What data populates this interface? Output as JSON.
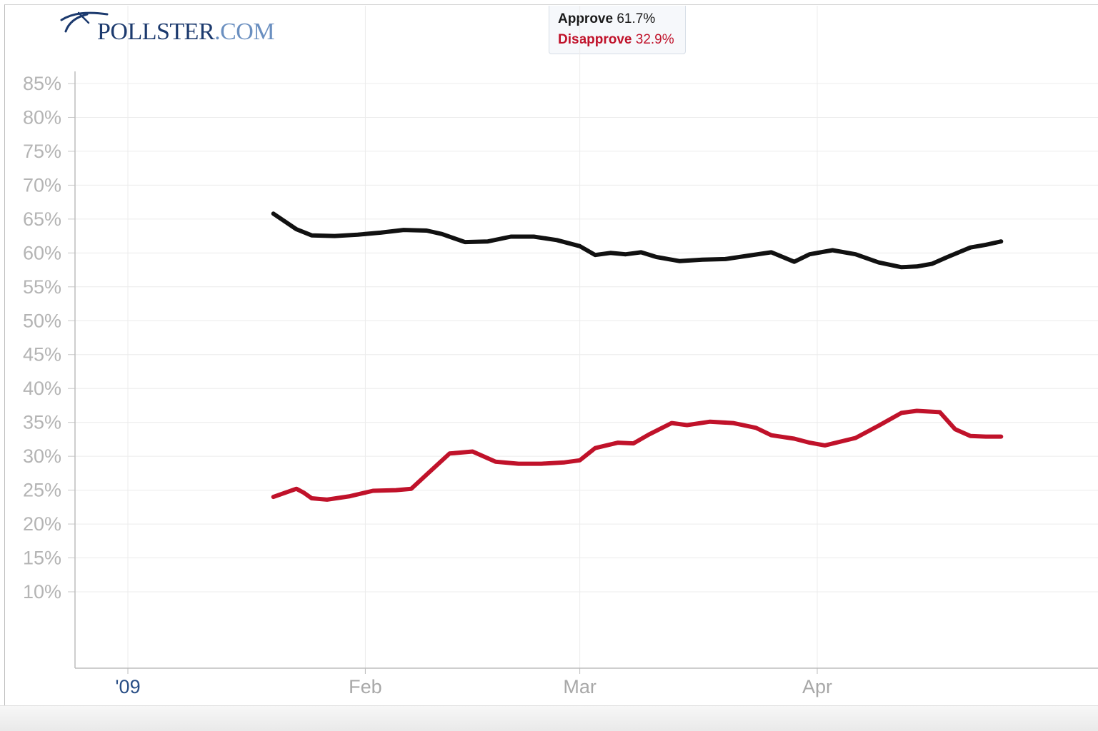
{
  "brand": {
    "name": "POLLSTER",
    "suffix": ".COM",
    "color": "#1c3a6e"
  },
  "tooltip": {
    "approve_label": "Approve",
    "approve_value": "61.7%",
    "disapprove_label": "Disapprove",
    "disapprove_value": "32.9%"
  },
  "chart_data": {
    "type": "line",
    "title": "",
    "xlabel": "",
    "ylabel": "",
    "x_ticks": [
      {
        "label": "'09",
        "date": "2009-01-01"
      },
      {
        "label": "Feb",
        "date": "2009-02-01"
      },
      {
        "label": "Mar",
        "date": "2009-03-01"
      },
      {
        "label": "Apr",
        "date": "2009-04-01"
      }
    ],
    "x_range": [
      "2008-12-25",
      "2009-05-10"
    ],
    "y_ticks": [
      10,
      15,
      20,
      25,
      30,
      35,
      40,
      45,
      50,
      55,
      60,
      65,
      70,
      75,
      80,
      85
    ],
    "y_tick_suffix": "%",
    "ylim": [
      0,
      87
    ],
    "grid": true,
    "series": [
      {
        "name": "Approve",
        "color": "#111111",
        "points": [
          [
            "2009-01-20",
            65.8
          ],
          [
            "2009-01-23",
            63.5
          ],
          [
            "2009-01-25",
            62.6
          ],
          [
            "2009-01-28",
            62.5
          ],
          [
            "2009-01-31",
            62.7
          ],
          [
            "2009-02-03",
            63.0
          ],
          [
            "2009-02-06",
            63.4
          ],
          [
            "2009-02-09",
            63.3
          ],
          [
            "2009-02-11",
            62.8
          ],
          [
            "2009-02-14",
            61.6
          ],
          [
            "2009-02-17",
            61.7
          ],
          [
            "2009-02-20",
            62.4
          ],
          [
            "2009-02-23",
            62.4
          ],
          [
            "2009-02-26",
            61.9
          ],
          [
            "2009-03-01",
            61.0
          ],
          [
            "2009-03-03",
            59.7
          ],
          [
            "2009-03-05",
            60.0
          ],
          [
            "2009-03-07",
            59.8
          ],
          [
            "2009-03-09",
            60.1
          ],
          [
            "2009-03-11",
            59.4
          ],
          [
            "2009-03-14",
            58.8
          ],
          [
            "2009-03-17",
            59.0
          ],
          [
            "2009-03-20",
            59.1
          ],
          [
            "2009-03-23",
            59.6
          ],
          [
            "2009-03-26",
            60.1
          ],
          [
            "2009-03-29",
            58.7
          ],
          [
            "2009-03-31",
            59.8
          ],
          [
            "2009-04-03",
            60.4
          ],
          [
            "2009-04-06",
            59.8
          ],
          [
            "2009-04-09",
            58.6
          ],
          [
            "2009-04-12",
            57.9
          ],
          [
            "2009-04-14",
            58.0
          ],
          [
            "2009-04-16",
            58.4
          ],
          [
            "2009-04-18",
            59.4
          ],
          [
            "2009-04-21",
            60.8
          ],
          [
            "2009-04-23",
            61.2
          ],
          [
            "2009-04-25",
            61.7
          ]
        ]
      },
      {
        "name": "Disapprove",
        "color": "#c0122a",
        "points": [
          [
            "2009-01-20",
            24.0
          ],
          [
            "2009-01-23",
            25.2
          ],
          [
            "2009-01-24",
            24.6
          ],
          [
            "2009-01-25",
            23.8
          ],
          [
            "2009-01-27",
            23.6
          ],
          [
            "2009-01-30",
            24.1
          ],
          [
            "2009-02-02",
            24.9
          ],
          [
            "2009-02-05",
            25.0
          ],
          [
            "2009-02-07",
            25.2
          ],
          [
            "2009-02-09",
            27.3
          ],
          [
            "2009-02-12",
            30.4
          ],
          [
            "2009-02-15",
            30.7
          ],
          [
            "2009-02-18",
            29.2
          ],
          [
            "2009-02-21",
            28.9
          ],
          [
            "2009-02-24",
            28.9
          ],
          [
            "2009-02-27",
            29.1
          ],
          [
            "2009-03-01",
            29.4
          ],
          [
            "2009-03-03",
            31.2
          ],
          [
            "2009-03-06",
            32.0
          ],
          [
            "2009-03-08",
            31.9
          ],
          [
            "2009-03-10",
            33.2
          ],
          [
            "2009-03-13",
            34.9
          ],
          [
            "2009-03-15",
            34.6
          ],
          [
            "2009-03-18",
            35.1
          ],
          [
            "2009-03-21",
            34.9
          ],
          [
            "2009-03-24",
            34.2
          ],
          [
            "2009-03-26",
            33.1
          ],
          [
            "2009-03-29",
            32.6
          ],
          [
            "2009-03-31",
            32.0
          ],
          [
            "2009-04-02",
            31.6
          ],
          [
            "2009-04-06",
            32.7
          ],
          [
            "2009-04-09",
            34.5
          ],
          [
            "2009-04-12",
            36.4
          ],
          [
            "2009-04-14",
            36.7
          ],
          [
            "2009-04-17",
            36.5
          ],
          [
            "2009-04-19",
            34.0
          ],
          [
            "2009-04-21",
            33.0
          ],
          [
            "2009-04-23",
            32.9
          ],
          [
            "2009-04-25",
            32.9
          ]
        ]
      }
    ]
  }
}
